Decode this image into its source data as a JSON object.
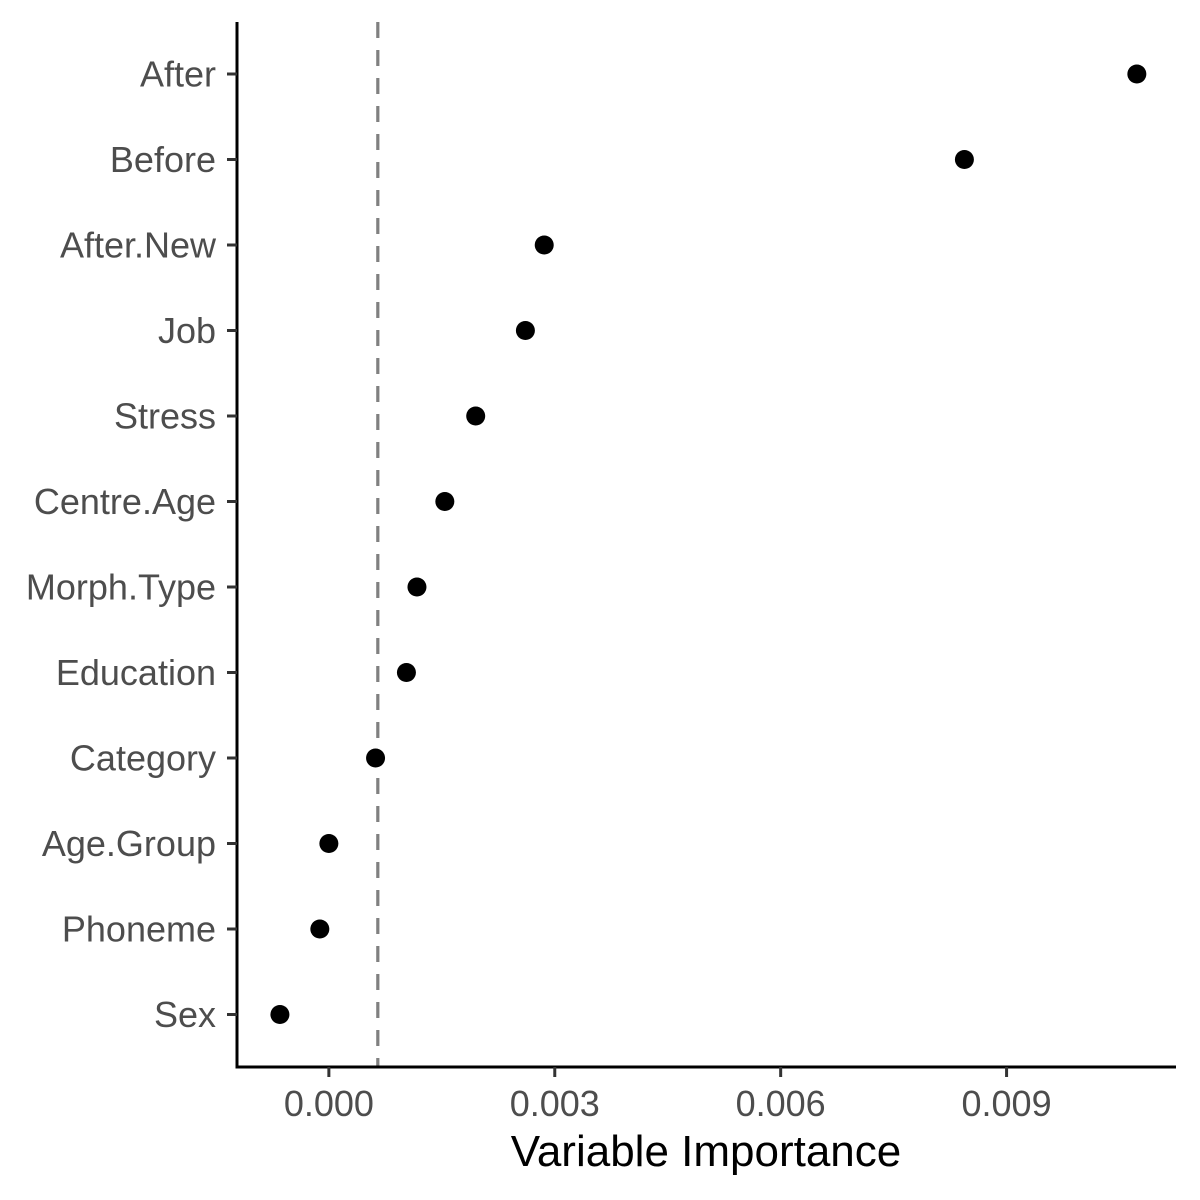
{
  "chart_data": {
    "type": "scatter",
    "xlabel": "Variable Importance",
    "ylabel": "",
    "xlim": [
      -0.00122,
      0.01125
    ],
    "x_ticks": [
      0.0,
      0.003,
      0.006,
      0.009
    ],
    "x_tick_labels": [
      "0.000",
      "0.003",
      "0.006",
      "0.009"
    ],
    "reference_line": {
      "x": 0.00065,
      "style": "dashed",
      "color": "#808080"
    },
    "grid": false,
    "legend": "none",
    "point_color": "#000000",
    "categories": [
      "After",
      "Before",
      "After.New",
      "Job",
      "Stress",
      "Centre.Age",
      "Morph.Type",
      "Education",
      "Category",
      "Age.Group",
      "Phoneme",
      "Sex"
    ],
    "values": [
      0.01073,
      0.00844,
      0.00286,
      0.00261,
      0.00195,
      0.00154,
      0.00117,
      0.00103,
      0.00062,
      0.0,
      -0.00012,
      -0.00065
    ]
  }
}
